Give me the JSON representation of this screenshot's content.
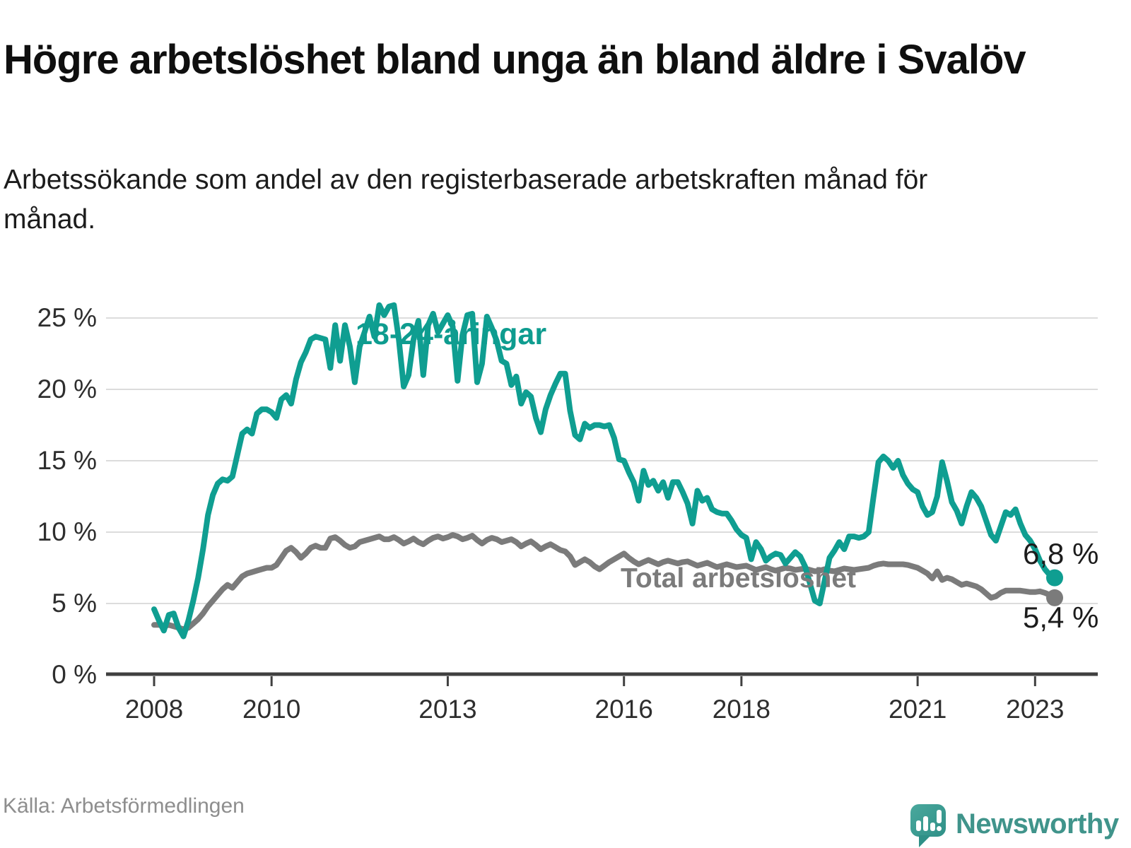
{
  "header": {
    "title": "Högre arbetslöshet bland unga än bland äldre i Svalöv",
    "subtitle": "Arbetssökande som andel av den registerbaserade arbetskraften månad för månad."
  },
  "footer": {
    "source": "Källa: Arbetsförmedlingen",
    "brand": "Newsworthy"
  },
  "chart_data": {
    "type": "line",
    "title": "Högre arbetslöshet bland unga än bland äldre i Svalöv",
    "subtitle": "Arbetssökande som andel av den registerbaserade arbetskraften månad för månad.",
    "xlabel": "",
    "ylabel": "",
    "grid": "horizontal",
    "legend_position": "inline",
    "x_unit": "month",
    "x_start_label": "2008",
    "x_end_label": "2023",
    "ylim": [
      0,
      26.5
    ],
    "yticks": [
      {
        "value": 0,
        "label": "0 %"
      },
      {
        "value": 5,
        "label": "5 %"
      },
      {
        "value": 10,
        "label": "10 %"
      },
      {
        "value": 15,
        "label": "15 %"
      },
      {
        "value": 20,
        "label": "20 %"
      },
      {
        "value": 25,
        "label": "25 %"
      }
    ],
    "xticks": [
      {
        "year": 2008,
        "label": "2008"
      },
      {
        "year": 2010,
        "label": "2010"
      },
      {
        "year": 2013,
        "label": "2013"
      },
      {
        "year": 2016,
        "label": "2016"
      },
      {
        "year": 2018,
        "label": "2018"
      },
      {
        "year": 2021,
        "label": "2021"
      },
      {
        "year": 2023,
        "label": "2023"
      }
    ],
    "series": [
      {
        "name": "18-24-åringar",
        "color": "#0f9e91",
        "end_label": "6,8 %",
        "end_value": 6.8,
        "values": [
          4.6,
          3.8,
          3.1,
          4.2,
          4.3,
          3.3,
          2.7,
          3.8,
          5.2,
          6.8,
          8.8,
          11.2,
          12.6,
          13.4,
          13.7,
          13.6,
          13.9,
          15.4,
          16.9,
          17.2,
          16.9,
          18.3,
          18.6,
          18.6,
          18.4,
          18.0,
          19.3,
          19.6,
          19.0,
          20.7,
          21.9,
          22.6,
          23.5,
          23.7,
          23.6,
          23.5,
          21.5,
          24.5,
          22.0,
          24.5,
          23.0,
          20.5,
          23.0,
          24.0,
          25.1,
          23.7,
          25.9,
          25.2,
          25.8,
          25.9,
          23.5,
          20.2,
          21.0,
          23.5,
          24.8,
          21.0,
          24.5,
          25.3,
          24.0,
          24.6,
          25.2,
          24.4,
          20.6,
          23.8,
          25.2,
          25.3,
          20.5,
          21.8,
          25.1,
          24.3,
          23.4,
          22.0,
          21.8,
          20.3,
          20.9,
          19.0,
          19.8,
          19.5,
          18.0,
          17.0,
          18.6,
          19.6,
          20.4,
          21.1,
          21.1,
          18.5,
          16.8,
          16.5,
          17.6,
          17.3,
          17.5,
          17.5,
          17.4,
          17.5,
          16.6,
          15.1,
          15.0,
          14.2,
          13.5,
          12.2,
          14.3,
          13.3,
          13.6,
          12.9,
          13.5,
          12.4,
          13.5,
          13.5,
          12.8,
          12.0,
          10.6,
          12.9,
          12.2,
          12.4,
          11.6,
          11.4,
          11.3,
          11.3,
          10.8,
          10.2,
          9.8,
          9.6,
          8.1,
          9.3,
          8.8,
          8.0,
          8.3,
          8.5,
          8.4,
          7.8,
          8.2,
          8.6,
          8.3,
          7.6,
          6.4,
          5.2,
          5.0,
          6.6,
          8.2,
          8.7,
          9.3,
          8.8,
          9.7,
          9.7,
          9.6,
          9.7,
          10.0,
          12.5,
          14.9,
          15.3,
          15.0,
          14.5,
          15.0,
          14.0,
          13.4,
          13.0,
          12.8,
          11.8,
          11.2,
          11.4,
          12.5,
          14.9,
          13.6,
          12.1,
          11.5,
          10.6,
          11.8,
          12.8,
          12.4,
          11.8,
          10.8,
          9.8,
          9.4,
          10.4,
          11.4,
          11.2,
          11.6,
          10.6,
          9.8,
          9.4,
          8.8,
          8.0,
          7.4,
          7.0,
          6.8
        ]
      },
      {
        "name": "Total arbetslöshet",
        "color": "#7b7b7b",
        "end_label": "5,4 %",
        "end_value": 5.4,
        "values": [
          3.5,
          3.5,
          3.4,
          3.5,
          3.4,
          3.3,
          3.2,
          3.3,
          3.6,
          3.9,
          4.3,
          4.8,
          5.2,
          5.6,
          6.0,
          6.3,
          6.1,
          6.5,
          6.9,
          7.1,
          7.2,
          7.3,
          7.4,
          7.5,
          7.5,
          7.7,
          8.2,
          8.7,
          8.9,
          8.6,
          8.2,
          8.5,
          8.9,
          9.05,
          8.9,
          8.9,
          9.55,
          9.65,
          9.4,
          9.1,
          8.9,
          9.0,
          9.3,
          9.4,
          9.5,
          9.6,
          9.7,
          9.5,
          9.5,
          9.65,
          9.45,
          9.2,
          9.35,
          9.55,
          9.3,
          9.15,
          9.4,
          9.6,
          9.7,
          9.55,
          9.65,
          9.8,
          9.7,
          9.5,
          9.6,
          9.75,
          9.45,
          9.2,
          9.45,
          9.6,
          9.5,
          9.3,
          9.4,
          9.5,
          9.3,
          9.0,
          9.2,
          9.35,
          9.1,
          8.8,
          9.0,
          9.15,
          8.95,
          8.75,
          8.65,
          8.3,
          7.7,
          7.9,
          8.1,
          7.9,
          7.6,
          7.4,
          7.65,
          7.9,
          8.1,
          8.3,
          8.5,
          8.2,
          7.95,
          7.75,
          7.9,
          8.05,
          7.9,
          7.75,
          7.9,
          8.0,
          7.9,
          7.8,
          7.9,
          7.95,
          7.8,
          7.65,
          7.75,
          7.85,
          7.7,
          7.55,
          7.65,
          7.75,
          7.65,
          7.55,
          7.6,
          7.65,
          7.5,
          7.35,
          7.45,
          7.55,
          7.4,
          7.3,
          7.4,
          7.5,
          7.45,
          7.35,
          7.4,
          7.45,
          7.35,
          7.25,
          7.3,
          7.4,
          7.3,
          7.25,
          7.35,
          7.45,
          7.4,
          7.35,
          7.4,
          7.45,
          7.5,
          7.65,
          7.75,
          7.8,
          7.75,
          7.75,
          7.75,
          7.75,
          7.7,
          7.6,
          7.5,
          7.3,
          7.1,
          6.75,
          7.25,
          6.65,
          6.8,
          6.7,
          6.5,
          6.3,
          6.4,
          6.3,
          6.2,
          6.0,
          5.7,
          5.4,
          5.5,
          5.75,
          5.9,
          5.9,
          5.9,
          5.9,
          5.85,
          5.8,
          5.8,
          5.85,
          5.75,
          5.6,
          5.4
        ]
      }
    ]
  }
}
